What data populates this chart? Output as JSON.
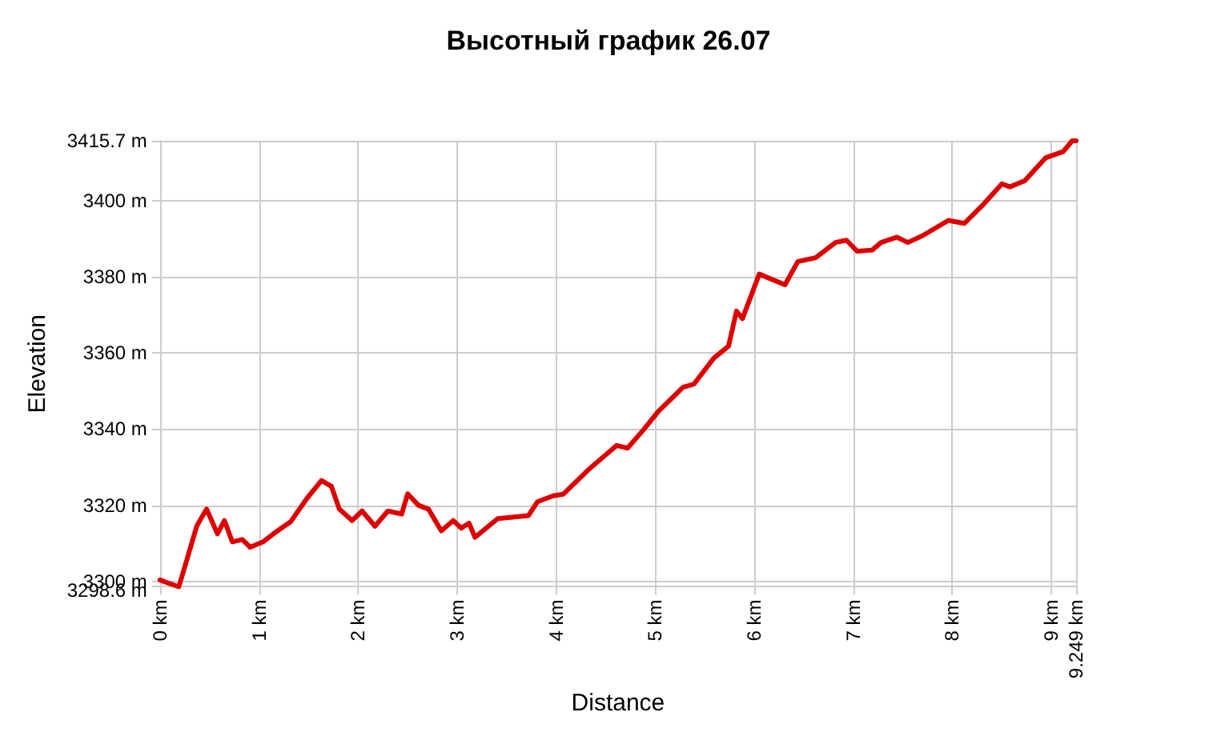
{
  "chart_data": {
    "type": "line",
    "title": "Высотный график 26.07",
    "xlabel": "Distance",
    "ylabel": "Elevation",
    "xlim": [
      0,
      9.249
    ],
    "ylim": [
      3298.6,
      3415.7
    ],
    "grid": true,
    "marker": "none",
    "line_style": "solid",
    "xticks": [
      {
        "value": 0,
        "label": "0 km"
      },
      {
        "value": 1,
        "label": "1 km"
      },
      {
        "value": 2,
        "label": "2 km"
      },
      {
        "value": 3,
        "label": "3 km"
      },
      {
        "value": 4,
        "label": "4 km"
      },
      {
        "value": 5,
        "label": "5 km"
      },
      {
        "value": 6,
        "label": "6 km"
      },
      {
        "value": 7,
        "label": "7 km"
      },
      {
        "value": 8,
        "label": "8 km"
      },
      {
        "value": 9,
        "label": "9 km"
      },
      {
        "value": 9.249,
        "label": "9.249 km"
      }
    ],
    "yticks": [
      {
        "value": 3298.6,
        "label": "3298.6 m"
      },
      {
        "value": 3300,
        "label": "3300 m"
      },
      {
        "value": 3320,
        "label": "3320 m"
      },
      {
        "value": 3340,
        "label": "3340 m"
      },
      {
        "value": 3360,
        "label": "3360 m"
      },
      {
        "value": 3380,
        "label": "3380 m"
      },
      {
        "value": 3400,
        "label": "3400 m"
      },
      {
        "value": 3415.7,
        "label": "3415.7 m"
      }
    ],
    "series": [
      {
        "color": "#dd0000",
        "x": [
          0,
          0.09,
          0.19,
          0.27,
          0.37,
          0.47,
          0.58,
          0.65,
          0.73,
          0.83,
          0.91,
          1.04,
          1.17,
          1.32,
          1.48,
          1.63,
          1.73,
          1.81,
          1.94,
          2.04,
          2.17,
          2.3,
          2.44,
          2.5,
          2.61,
          2.71,
          2.84,
          2.96,
          3.04,
          3.12,
          3.18,
          3.41,
          3.72,
          3.81,
          3.97,
          4.07,
          4.34,
          4.61,
          4.72,
          4.88,
          5.03,
          5.28,
          5.39,
          5.59,
          5.74,
          5.82,
          5.88,
          6.05,
          6.31,
          6.44,
          6.62,
          6.82,
          6.93,
          7.04,
          7.19,
          7.28,
          7.44,
          7.55,
          7.7,
          7.96,
          8.12,
          8.32,
          8.5,
          8.58,
          8.73,
          8.94,
          9.12,
          9.21,
          9.249
        ],
        "values": [
          3300.4,
          3299.5,
          3298.6,
          3305.6,
          3314.5,
          3319,
          3312.5,
          3316,
          3310.4,
          3311,
          3309,
          3310.4,
          3313,
          3315.7,
          3321.7,
          3326.5,
          3325,
          3319,
          3316,
          3318.5,
          3314.5,
          3318.5,
          3317.7,
          3323,
          3320,
          3319,
          3313.3,
          3316,
          3314,
          3315.3,
          3311.6,
          3316.5,
          3317.3,
          3320.9,
          3322.5,
          3322.9,
          3329.7,
          3335.7,
          3335,
          3339.8,
          3344.6,
          3351,
          3351.8,
          3358.6,
          3361.8,
          3371,
          3369,
          3380.7,
          3377.9,
          3384,
          3385,
          3389,
          3389.6,
          3386.7,
          3387,
          3389,
          3390.4,
          3389,
          3390.8,
          3394.8,
          3394,
          3399.2,
          3404.4,
          3403.6,
          3405.2,
          3411.2,
          3412.9,
          3415.7,
          3415.7
        ]
      }
    ]
  }
}
